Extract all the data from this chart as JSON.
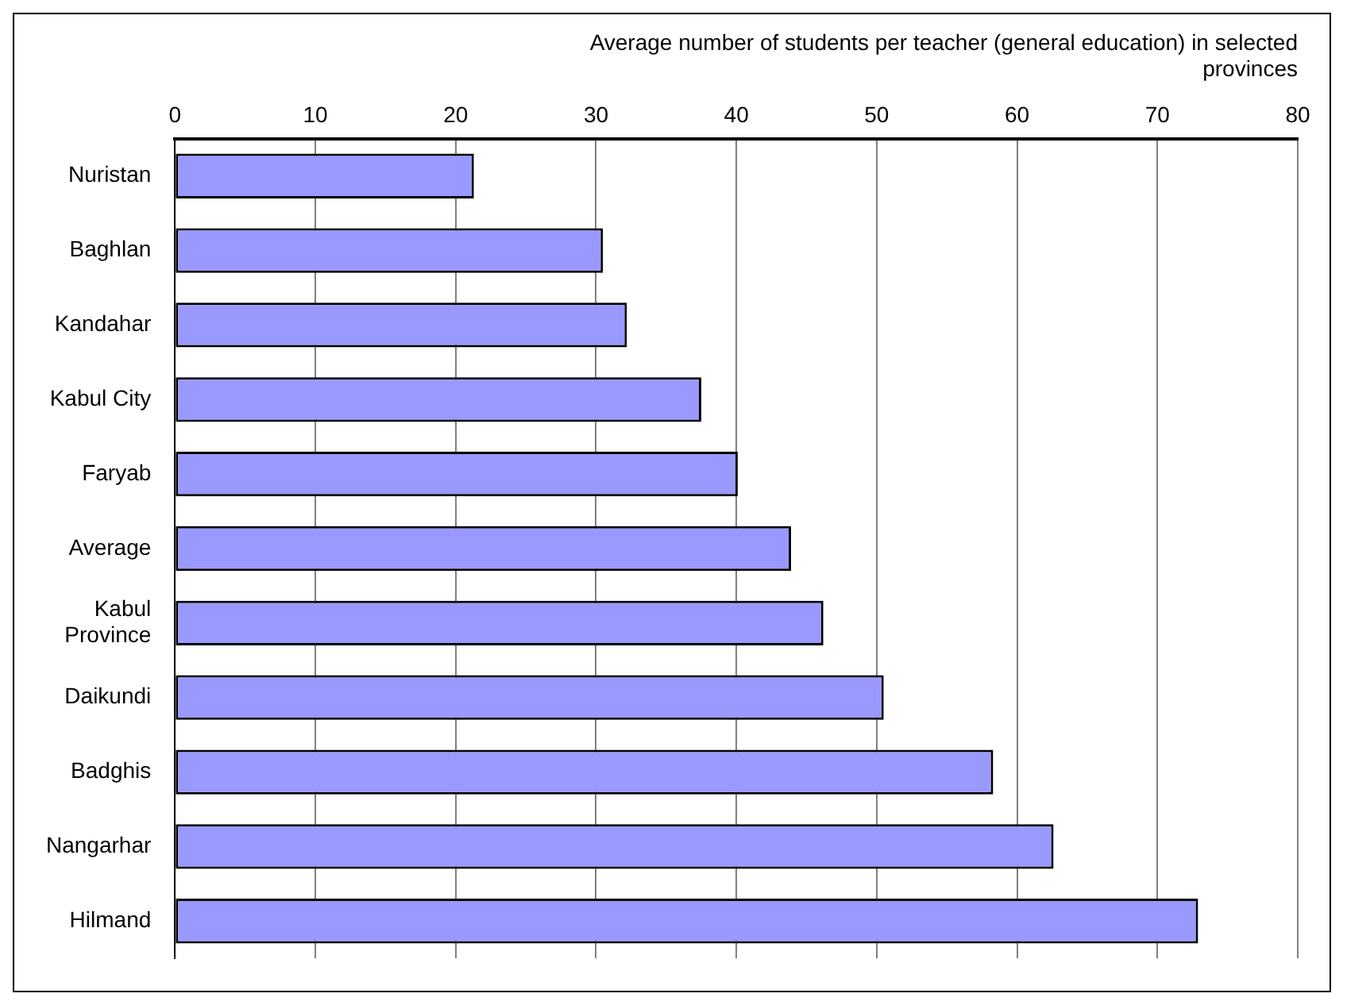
{
  "chart_data": {
    "type": "bar",
    "orientation": "horizontal",
    "title": "Average number of students per teacher (general education) in selected provinces",
    "categories": [
      "Nuristan",
      "Baghlan",
      "Kandahar",
      "Kabul City",
      "Faryab",
      "Average",
      "Kabul Province",
      "Daikundi",
      "Badghis",
      "Nangarhar",
      "Hilmand"
    ],
    "values": [
      21.3,
      30.5,
      32.2,
      37.5,
      40.1,
      43.9,
      46.2,
      50.5,
      58.3,
      62.6,
      72.9
    ],
    "color": "#9999ff",
    "xlim": [
      0,
      80
    ],
    "xticks": [
      0,
      10,
      20,
      30,
      40,
      50,
      60,
      70,
      80
    ],
    "grid": "x",
    "legend": false
  }
}
